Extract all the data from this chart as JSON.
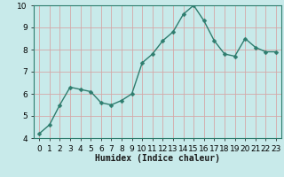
{
  "x": [
    0,
    1,
    2,
    3,
    4,
    5,
    6,
    7,
    8,
    9,
    10,
    11,
    12,
    13,
    14,
    15,
    16,
    17,
    18,
    19,
    20,
    21,
    22,
    23
  ],
  "y": [
    4.2,
    4.6,
    5.5,
    6.3,
    6.2,
    6.1,
    5.6,
    5.5,
    5.7,
    6.0,
    7.4,
    7.8,
    8.4,
    8.8,
    9.6,
    10.0,
    9.3,
    8.4,
    7.8,
    7.7,
    8.5,
    8.1,
    7.9,
    7.9
  ],
  "line_color": "#2e7d6e",
  "marker": "D",
  "marker_size": 2.5,
  "bg_color": "#c8eaea",
  "grid_color": "#d4a8a8",
  "xlabel": "Humidex (Indice chaleur)",
  "ylim": [
    4,
    10
  ],
  "xlim": [
    -0.5,
    23.5
  ],
  "yticks": [
    4,
    5,
    6,
    7,
    8,
    9,
    10
  ],
  "xticks": [
    0,
    1,
    2,
    3,
    4,
    5,
    6,
    7,
    8,
    9,
    10,
    11,
    12,
    13,
    14,
    15,
    16,
    17,
    18,
    19,
    20,
    21,
    22,
    23
  ],
  "xlabel_fontsize": 7.0,
  "tick_fontsize": 6.5,
  "line_width": 1.0,
  "spine_color": "#2e7d6e"
}
